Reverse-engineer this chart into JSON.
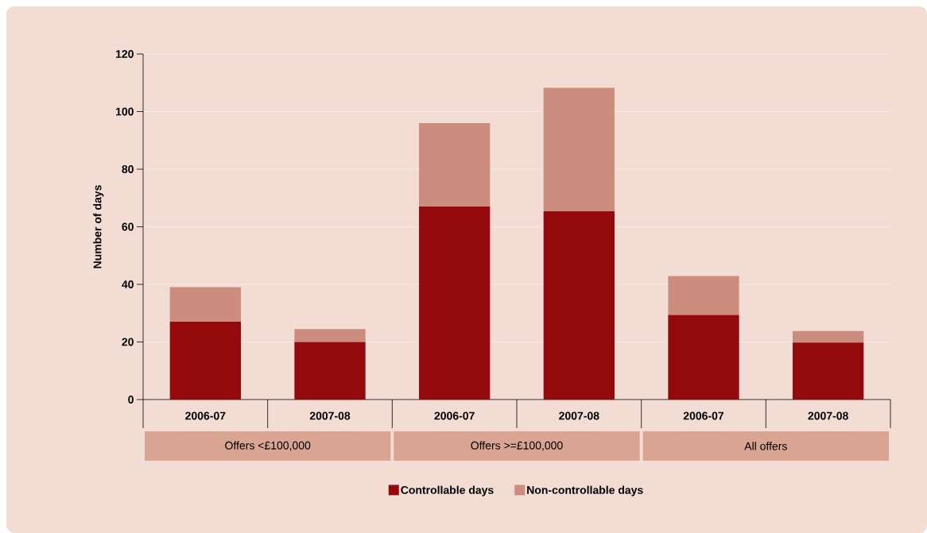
{
  "chart_data": {
    "type": "bar",
    "stacked": true,
    "ylabel": "Number of days",
    "categories": [
      "2006-07",
      "2007-08",
      "2006-07",
      "2007-08",
      "2006-07",
      "2007-08"
    ],
    "series": [
      {
        "name": "Controllable days",
        "color": "#940a0c",
        "values": [
          27,
          20,
          67,
          65.4,
          29.4,
          19.8
        ]
      },
      {
        "name": "Non-controllable days",
        "color": "#cc8d7e",
        "values": [
          12,
          4.5,
          29,
          42.9,
          13.5,
          4
        ]
      }
    ],
    "ylim": [
      0,
      120
    ],
    "yticks": [
      0,
      20,
      40,
      60,
      80,
      100,
      120
    ],
    "grid": "y",
    "legend": "bottom",
    "annotations": [
      "Offers <£100,000",
      "Offers >=£100,000",
      "All offers"
    ]
  }
}
